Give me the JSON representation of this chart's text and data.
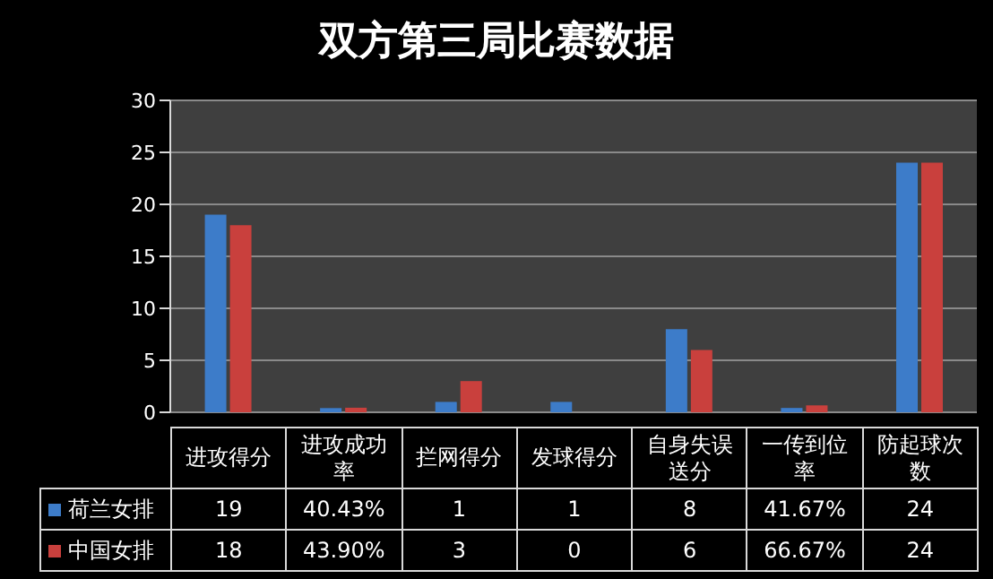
{
  "chart_data": {
    "type": "bar",
    "title": "双方第三局比赛数据",
    "categories": [
      "进攻得分",
      "进攻成功率",
      "拦网得分",
      "发球得分",
      "自身失误送分",
      "一传到位率",
      "防起球次数"
    ],
    "series": [
      {
        "name": "荷兰女排",
        "color": "#3d7cc9",
        "values": [
          19,
          0.4043,
          1,
          1,
          8,
          0.4167,
          24
        ],
        "value_labels": [
          "19",
          "40.43%",
          "1",
          "1",
          "8",
          "41.67%",
          "24"
        ]
      },
      {
        "name": "中国女排",
        "color": "#c9403d",
        "values": [
          18,
          0.439,
          3,
          0,
          6,
          0.6667,
          24
        ],
        "value_labels": [
          "18",
          "43.90%",
          "3",
          "0",
          "6",
          "66.67%",
          "24"
        ]
      }
    ],
    "ylim": [
      0,
      30
    ],
    "yticks": [
      0,
      5,
      10,
      15,
      20,
      25,
      30
    ],
    "grid": "y",
    "legend": "bottom left"
  }
}
